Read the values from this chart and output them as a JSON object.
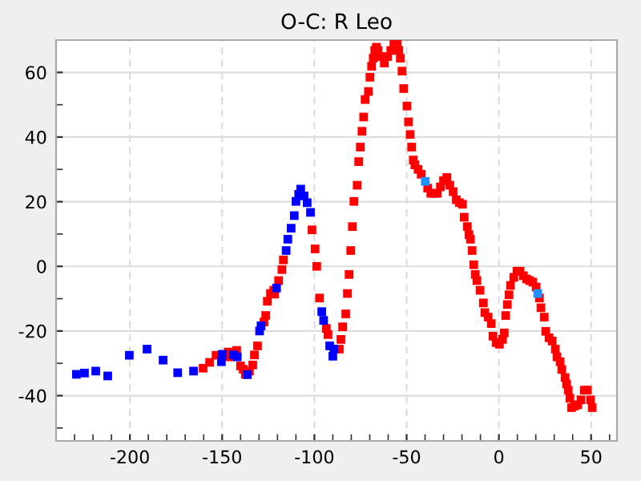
{
  "chart_data": {
    "type": "scatter",
    "title": "O-C: R Leo",
    "marker": "square",
    "grid": true,
    "xlim": [
      -240,
      64
    ],
    "ylim": [
      -54,
      70
    ],
    "xticks": [
      -200,
      -150,
      -100,
      -50,
      0,
      50
    ],
    "yticks": [
      -40,
      -20,
      0,
      20,
      40,
      60
    ],
    "series": [
      {
        "color": "#0000ff",
        "x": [
          -229,
          -224.6,
          -218.5,
          -212,
          -200.3,
          -190.7,
          -182,
          -174.1,
          -165.5,
          -150.4,
          -149.9,
          -143.8,
          -141.8,
          -136.3,
          -129.7,
          -128.9,
          -120.5,
          -115.3,
          -114.4,
          -112.6,
          -110.9,
          -110,
          -108.5,
          -107.4,
          -105.6,
          -103.9,
          -102.1,
          -96,
          -95,
          -91.7,
          -90,
          -89.4
        ],
        "values": [
          -33.4,
          -33,
          -32.4,
          -33.9,
          -27.5,
          -25.6,
          -29,
          -32.9,
          -32.4,
          -29.5,
          -27.2,
          -27.4,
          -28,
          -33.5,
          -20,
          -18.4,
          -6.7,
          4.9,
          8.4,
          11.8,
          15.7,
          20.1,
          22.3,
          23.9,
          21.8,
          19.7,
          16.7,
          -14,
          -16.7,
          -24.6,
          -27.8,
          -25.6
        ]
      },
      {
        "color": "#ff0000",
        "x": [
          -160.3,
          -156.8,
          -153.3,
          -146.7,
          -146.1,
          -142.1,
          -140,
          -138.6,
          -137.4,
          -135.2,
          -133.4,
          -132.5,
          -130.8,
          -127.3,
          -126.4,
          -125.5,
          -123.8,
          -122,
          -121.5,
          -119.4,
          -117.6,
          -116.8,
          -101.3,
          -99.6,
          -98.7,
          -97.2,
          -93.5,
          -92.6,
          -86.5,
          -85.6,
          -84.7,
          -83,
          -82.1,
          -81.2,
          -80.3,
          -79.4,
          -78.6,
          -76.8,
          -76,
          -75.1,
          -74.2,
          -73.3,
          -72.5,
          -70.7,
          -69.9,
          -69,
          -68.1,
          -67.3,
          -66.4,
          -65.5,
          -63.8,
          -62.1,
          -60.3,
          -58.6,
          -56.9,
          -55.1,
          -54.3,
          -53.4,
          -52.5,
          -51.6,
          -49.8,
          -49,
          -48.1,
          -47.3,
          -46.4,
          -45.5,
          -43.8,
          -42.1,
          -38.6,
          -36.9,
          -35.2,
          -33.4,
          -31.7,
          -30,
          -28.2,
          -26.6,
          -24.8,
          -23.1,
          -21.4,
          -19.7,
          -18.8,
          -17.1,
          -16.2,
          -15.4,
          -14.5,
          -13.6,
          -12.8,
          -11.9,
          -10.2,
          -8.4,
          -7.6,
          -5.8,
          -4.1,
          -3.2,
          -1.5,
          0.3,
          2,
          2.9,
          3.7,
          4.6,
          5.5,
          6.3,
          8.1,
          9.8,
          11.5,
          13.3,
          15,
          16.7,
          18.4,
          20.2,
          22,
          22.8,
          24.6,
          25.4,
          27.2,
          28.9,
          30.6,
          31.5,
          33.2,
          34.1,
          35.9,
          36.7,
          37.6,
          38.5,
          39.4,
          41.1,
          42.8,
          44.5,
          46.3,
          48,
          49.7,
          50.6
        ],
        "values": [
          -31.5,
          -29.7,
          -27.5,
          -26.5,
          -28,
          -26,
          -30.8,
          -31.8,
          -33.4,
          -32.4,
          -30.5,
          -27.4,
          -24.6,
          -17.2,
          -15.2,
          -10.8,
          -8.4,
          -7.4,
          -8.6,
          -4.4,
          -1,
          2,
          11.3,
          5.4,
          0,
          -9.8,
          -19.2,
          -21.1,
          -25.6,
          -22.6,
          -18.7,
          -14.7,
          -8.4,
          -2.5,
          4.9,
          12.3,
          20.1,
          25.1,
          32.4,
          36.9,
          41.8,
          46.2,
          51.6,
          54.1,
          58.5,
          61.9,
          64.4,
          66.8,
          67.8,
          66.8,
          64.9,
          62.9,
          64.9,
          66.8,
          68.8,
          68.8,
          66.8,
          64.4,
          60.4,
          55,
          49.6,
          44.7,
          40.8,
          36.9,
          32.9,
          31.4,
          30,
          28.5,
          24.2,
          22.6,
          22.6,
          22.6,
          24.6,
          26.5,
          27.5,
          25.1,
          23.1,
          20.6,
          19.7,
          19.2,
          15.2,
          12.3,
          9.8,
          8.4,
          4.9,
          0.5,
          -2.5,
          -4.4,
          -7.4,
          -11.3,
          -14.3,
          -15.7,
          -17.7,
          -21.6,
          -23.6,
          -24.1,
          -22.6,
          -20.6,
          -15.2,
          -11.8,
          -8.8,
          -5.9,
          -3.4,
          -1.5,
          -1.5,
          -2.9,
          -3.9,
          -4.4,
          -4.9,
          -6.4,
          -9.8,
          -12.8,
          -15.7,
          -20.1,
          -22.1,
          -23.1,
          -25.6,
          -28,
          -29.5,
          -31.9,
          -34.4,
          -36.4,
          -38.3,
          -40.8,
          -43.7,
          -43.2,
          -42.8,
          -41.3,
          -38.3,
          -38.3,
          -41.3,
          -43.7
        ]
      },
      {
        "color": "#1e90ff",
        "x": [
          -39.9,
          21.1
        ],
        "values": [
          26.3,
          -8.4
        ]
      }
    ]
  }
}
